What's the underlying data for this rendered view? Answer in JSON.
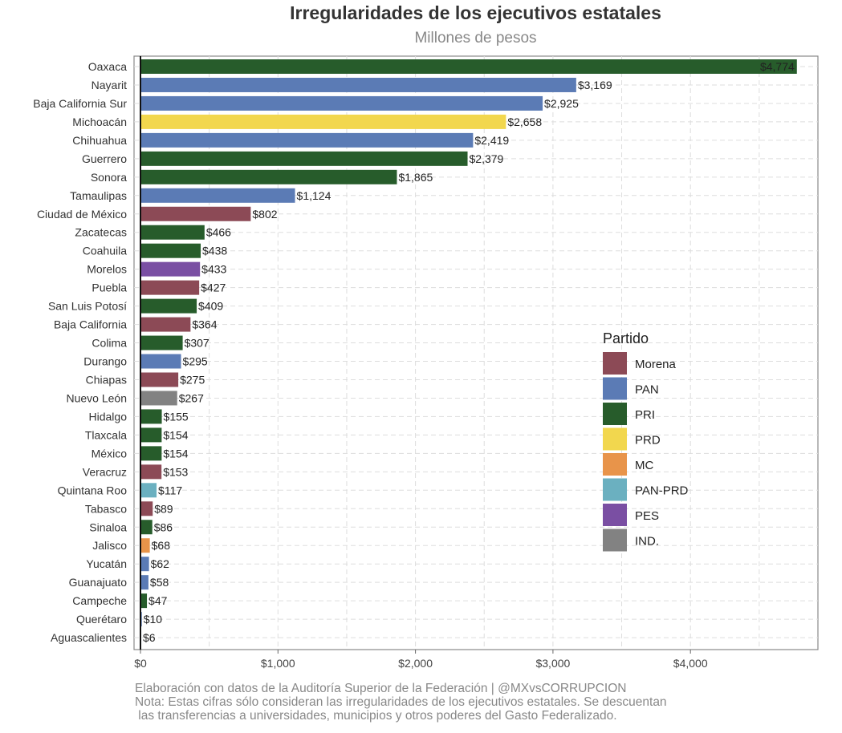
{
  "chart_data": {
    "type": "bar",
    "orientation": "horizontal",
    "title": "Irregularidades de los ejecutivos estatales",
    "subtitle": "Millones de pesos",
    "xlim": [
      0,
      4774
    ],
    "x_ticks": [
      0,
      1000,
      2000,
      3000,
      4000
    ],
    "x_tick_labels": [
      "$0",
      "$1,000",
      "$2,000",
      "$3,000",
      "$4,000"
    ],
    "grid": true,
    "legend_position": "right",
    "legend": {
      "title": "Partido",
      "entries": [
        {
          "name": "Morena",
          "color": "#8c4a56"
        },
        {
          "name": "PAN",
          "color": "#5b7bb5"
        },
        {
          "name": "PRI",
          "color": "#275c2b"
        },
        {
          "name": "PRD",
          "color": "#f2d74e"
        },
        {
          "name": "MC",
          "color": "#e8944a"
        },
        {
          "name": "PAN-PRD",
          "color": "#6bb0c0"
        },
        {
          "name": "PES",
          "color": "#7a4fa3"
        },
        {
          "name": "IND.",
          "color": "#828282"
        }
      ]
    },
    "bars": [
      {
        "state": "Oaxaca",
        "value": 4774,
        "label": "$4,774",
        "party": "PRI"
      },
      {
        "state": "Nayarit",
        "value": 3169,
        "label": "$3,169",
        "party": "PAN"
      },
      {
        "state": "Baja California Sur",
        "value": 2925,
        "label": "$2,925",
        "party": "PAN"
      },
      {
        "state": "Michoacán",
        "value": 2658,
        "label": "$2,658",
        "party": "PRD"
      },
      {
        "state": "Chihuahua",
        "value": 2419,
        "label": "$2,419",
        "party": "PAN"
      },
      {
        "state": "Guerrero",
        "value": 2379,
        "label": "$2,379",
        "party": "PRI"
      },
      {
        "state": "Sonora",
        "value": 1865,
        "label": "$1,865",
        "party": "PRI"
      },
      {
        "state": "Tamaulipas",
        "value": 1124,
        "label": "$1,124",
        "party": "PAN"
      },
      {
        "state": "Ciudad de México",
        "value": 802,
        "label": "$802",
        "party": "Morena"
      },
      {
        "state": "Zacatecas",
        "value": 466,
        "label": "$466",
        "party": "PRI"
      },
      {
        "state": "Coahuila",
        "value": 438,
        "label": "$438",
        "party": "PRI"
      },
      {
        "state": "Morelos",
        "value": 433,
        "label": "$433",
        "party": "PES"
      },
      {
        "state": "Puebla",
        "value": 427,
        "label": "$427",
        "party": "Morena"
      },
      {
        "state": "San Luis Potosí",
        "value": 409,
        "label": "$409",
        "party": "PRI"
      },
      {
        "state": "Baja California",
        "value": 364,
        "label": "$364",
        "party": "Morena"
      },
      {
        "state": "Colima",
        "value": 307,
        "label": "$307",
        "party": "PRI"
      },
      {
        "state": "Durango",
        "value": 295,
        "label": "$295",
        "party": "PAN"
      },
      {
        "state": "Chiapas",
        "value": 275,
        "label": "$275",
        "party": "Morena"
      },
      {
        "state": "Nuevo León",
        "value": 267,
        "label": "$267",
        "party": "IND."
      },
      {
        "state": "Hidalgo",
        "value": 155,
        "label": "$155",
        "party": "PRI"
      },
      {
        "state": "Tlaxcala",
        "value": 154,
        "label": "$154",
        "party": "PRI"
      },
      {
        "state": "México",
        "value": 154,
        "label": "$154",
        "party": "PRI"
      },
      {
        "state": "Veracruz",
        "value": 153,
        "label": "$153",
        "party": "Morena"
      },
      {
        "state": "Quintana Roo",
        "value": 117,
        "label": "$117",
        "party": "PAN-PRD"
      },
      {
        "state": "Tabasco",
        "value": 89,
        "label": "$89",
        "party": "Morena"
      },
      {
        "state": "Sinaloa",
        "value": 86,
        "label": "$86",
        "party": "PRI"
      },
      {
        "state": "Jalisco",
        "value": 68,
        "label": "$68",
        "party": "MC"
      },
      {
        "state": "Yucatán",
        "value": 62,
        "label": "$62",
        "party": "PAN"
      },
      {
        "state": "Guanajuato",
        "value": 58,
        "label": "$58",
        "party": "PAN"
      },
      {
        "state": "Campeche",
        "value": 47,
        "label": "$47",
        "party": "PRI"
      },
      {
        "state": "Querétaro",
        "value": 10,
        "label": "$10",
        "party": "PAN"
      },
      {
        "state": "Aguascalientes",
        "value": 6,
        "label": "$6",
        "party": "PAN"
      }
    ]
  },
  "footer": {
    "source": "Elaboración con datos de la Auditoría Superior de la Federación | @MXvsCORRUPCION",
    "note_line1": "Nota: Estas cifras sólo consideran las irregularidades de los ejecutivos estatales. Se descuentan",
    "note_line2": " las transferencias a universidades, municipios y otros poderes del Gasto Federalizado."
  }
}
